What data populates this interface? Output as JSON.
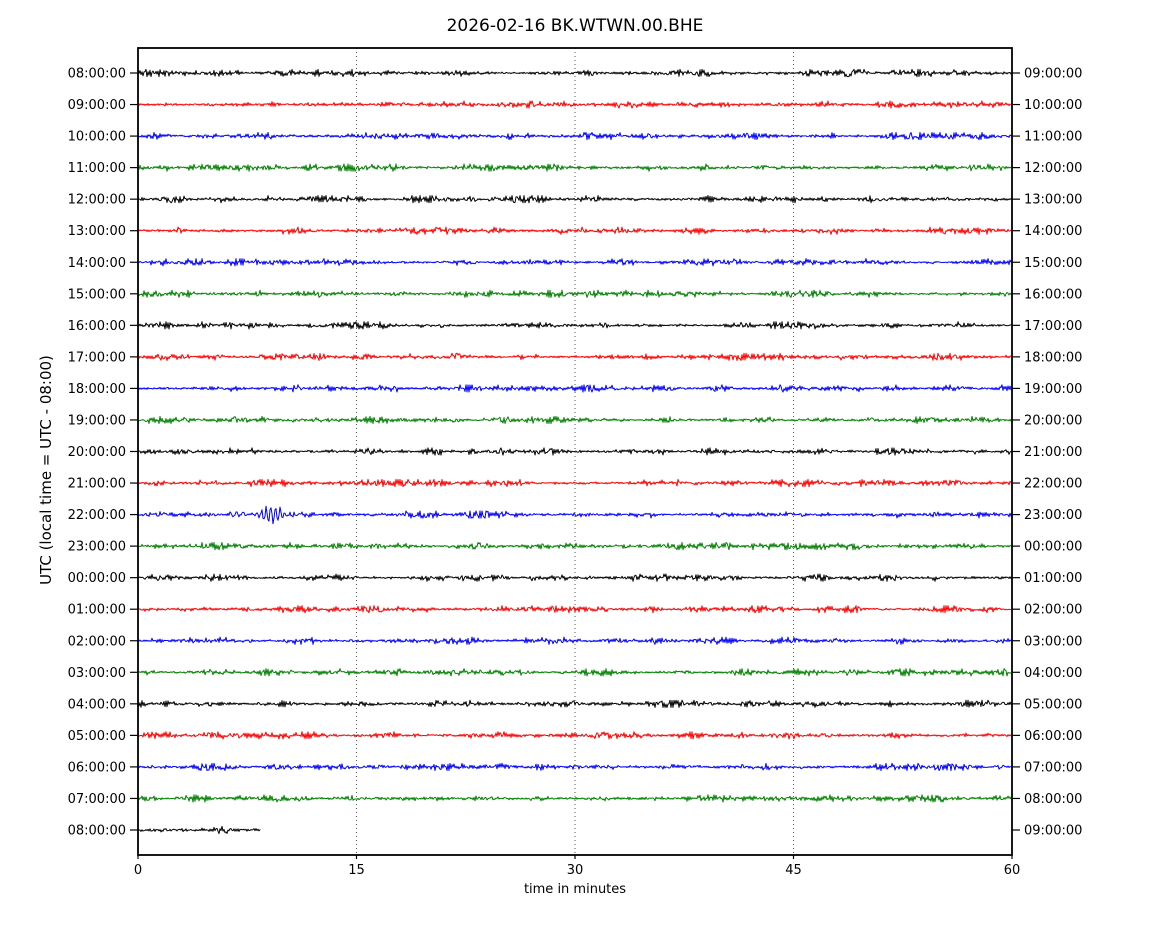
{
  "chart_data": {
    "type": "line",
    "subtype": "seismic-helicorder-dayplot",
    "title": "2026-02-16 BK.WTWN.00.BHE",
    "xlabel": "time in minutes",
    "ylabel": "UTC (local time = UTC - 08:00)",
    "xlim": [
      0,
      60
    ],
    "x_ticks": [
      0,
      15,
      30,
      45,
      60
    ],
    "grid": {
      "vertical_dotted_at_minutes": [
        15,
        30,
        45
      ]
    },
    "interval_minutes": 60,
    "rows": 25,
    "colors_cycle": [
      "#000000",
      "#ff0000",
      "#0000ff",
      "#008000"
    ],
    "legend": "none",
    "traces": [
      {
        "utc_left": "08:00:00",
        "local_right": "09:00:00",
        "color": "#000000",
        "start_min": 0,
        "duration_min": 60
      },
      {
        "utc_left": "09:00:00",
        "local_right": "10:00:00",
        "color": "#ff0000",
        "start_min": 0,
        "duration_min": 60
      },
      {
        "utc_left": "10:00:00",
        "local_right": "11:00:00",
        "color": "#0000ff",
        "start_min": 0,
        "duration_min": 60
      },
      {
        "utc_left": "11:00:00",
        "local_right": "12:00:00",
        "color": "#008000",
        "start_min": 0,
        "duration_min": 60
      },
      {
        "utc_left": "12:00:00",
        "local_right": "13:00:00",
        "color": "#000000",
        "start_min": 0,
        "duration_min": 60
      },
      {
        "utc_left": "13:00:00",
        "local_right": "14:00:00",
        "color": "#ff0000",
        "start_min": 0,
        "duration_min": 60
      },
      {
        "utc_left": "14:00:00",
        "local_right": "15:00:00",
        "color": "#0000ff",
        "start_min": 0,
        "duration_min": 60
      },
      {
        "utc_left": "15:00:00",
        "local_right": "16:00:00",
        "color": "#008000",
        "start_min": 0,
        "duration_min": 60
      },
      {
        "utc_left": "16:00:00",
        "local_right": "17:00:00",
        "color": "#000000",
        "start_min": 0,
        "duration_min": 60
      },
      {
        "utc_left": "17:00:00",
        "local_right": "18:00:00",
        "color": "#ff0000",
        "start_min": 0,
        "duration_min": 60
      },
      {
        "utc_left": "18:00:00",
        "local_right": "19:00:00",
        "color": "#0000ff",
        "start_min": 0,
        "duration_min": 60
      },
      {
        "utc_left": "19:00:00",
        "local_right": "20:00:00",
        "color": "#008000",
        "start_min": 0,
        "duration_min": 60
      },
      {
        "utc_left": "20:00:00",
        "local_right": "21:00:00",
        "color": "#000000",
        "start_min": 0,
        "duration_min": 60
      },
      {
        "utc_left": "21:00:00",
        "local_right": "22:00:00",
        "color": "#ff0000",
        "start_min": 0,
        "duration_min": 60
      },
      {
        "utc_left": "22:00:00",
        "local_right": "23:00:00",
        "color": "#0000ff",
        "start_min": 0,
        "duration_min": 60
      },
      {
        "utc_left": "23:00:00",
        "local_right": "00:00:00",
        "color": "#008000",
        "start_min": 0,
        "duration_min": 60
      },
      {
        "utc_left": "00:00:00",
        "local_right": "01:00:00",
        "color": "#000000",
        "start_min": 0,
        "duration_min": 60
      },
      {
        "utc_left": "01:00:00",
        "local_right": "02:00:00",
        "color": "#ff0000",
        "start_min": 0,
        "duration_min": 60
      },
      {
        "utc_left": "02:00:00",
        "local_right": "03:00:00",
        "color": "#0000ff",
        "start_min": 0,
        "duration_min": 60
      },
      {
        "utc_left": "03:00:00",
        "local_right": "04:00:00",
        "color": "#008000",
        "start_min": 0,
        "duration_min": 60
      },
      {
        "utc_left": "04:00:00",
        "local_right": "05:00:00",
        "color": "#000000",
        "start_min": 0,
        "duration_min": 60
      },
      {
        "utc_left": "05:00:00",
        "local_right": "06:00:00",
        "color": "#ff0000",
        "start_min": 0,
        "duration_min": 60
      },
      {
        "utc_left": "06:00:00",
        "local_right": "07:00:00",
        "color": "#0000ff",
        "start_min": 0,
        "duration_min": 60
      },
      {
        "utc_left": "07:00:00",
        "local_right": "08:00:00",
        "color": "#008000",
        "start_min": 0,
        "duration_min": 60
      },
      {
        "utc_left": "08:00:00",
        "local_right": "09:00:00",
        "color": "#000000",
        "start_min": 0,
        "duration_min": 8.4
      }
    ],
    "events": [
      {
        "trace_utc": "22:00:00",
        "trace_index": 14,
        "minute": 9.2,
        "description": "small short-duration oscillatory wiggle on the blue 22:00:00 trace"
      }
    ],
    "noise": {
      "description": "continuous low-amplitude background noise band on every trace with irregular thicker blobs"
    }
  }
}
